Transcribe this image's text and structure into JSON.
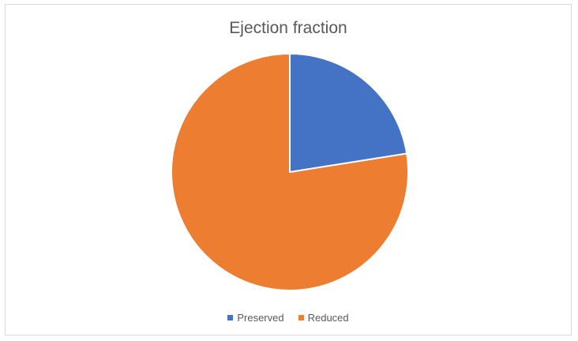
{
  "chart_data": {
    "type": "pie",
    "title": "Ejection fraction",
    "categories": [
      "Preserved",
      "Reduced"
    ],
    "values": [
      22.5,
      77.5
    ],
    "colors": [
      "#4472c4",
      "#ed7d31"
    ],
    "start_angle_deg": 0,
    "direction": "clockwise",
    "legend_position": "bottom"
  }
}
